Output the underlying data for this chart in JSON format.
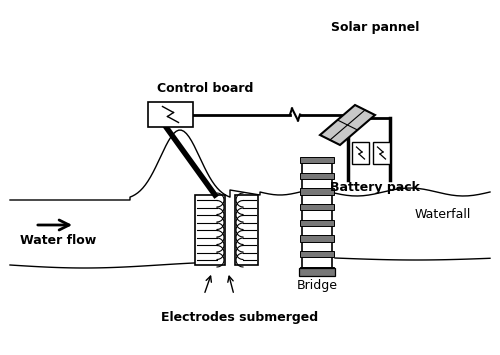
{
  "bg_color": "#ffffff",
  "line_color": "#000000",
  "gray_color": "#787878",
  "dark_gray": "#606060",
  "labels": {
    "solar": "Solar pannel",
    "control": "Control board",
    "battery": "Battery pack",
    "waterfall": "Waterfall",
    "bridge": "Bridge",
    "electrodes": "Electrodes submerged",
    "water_flow": "Water flow"
  },
  "figsize": [
    5.0,
    3.55
  ],
  "dpi": 100
}
